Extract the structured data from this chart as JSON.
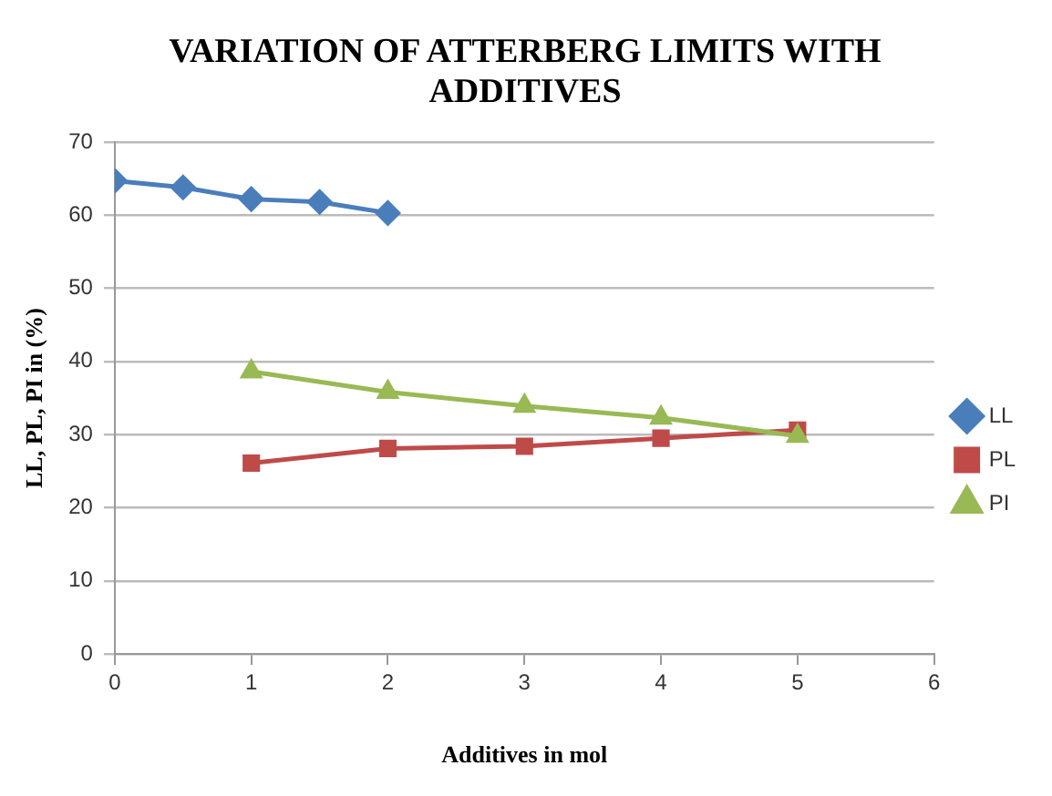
{
  "chart_data": {
    "type": "line",
    "title": "VARIATION OF ATTERBERG LIMITS WITH ADDITIVES",
    "xlabel": "Additives in mol",
    "ylabel": "LL, PL, PI in (%)",
    "xlim": [
      0,
      6
    ],
    "xticks": [
      0,
      1,
      2,
      3,
      4,
      5,
      6
    ],
    "ylim": [
      0,
      70
    ],
    "yticks": [
      0,
      10,
      20,
      30,
      40,
      50,
      60,
      70
    ],
    "grid": "y",
    "legend": "right",
    "line_style": "solid",
    "series": [
      {
        "name": "LL",
        "color": "#4a7ebb",
        "marker": "diamond",
        "x": [
          0,
          0.5,
          1,
          1.5,
          2
        ],
        "values": [
          64.7,
          63.8,
          62.2,
          61.8,
          60.3
        ]
      },
      {
        "name": "PL",
        "color": "#be4b48",
        "marker": "square",
        "x": [
          1,
          2,
          3,
          4,
          5
        ],
        "values": [
          26.1,
          28.1,
          28.4,
          29.5,
          30.6
        ]
      },
      {
        "name": "PI",
        "color": "#98b954",
        "marker": "triangle",
        "x": [
          1,
          2,
          3,
          4,
          5
        ],
        "values": [
          38.6,
          35.8,
          33.9,
          32.3,
          29.8
        ]
      }
    ]
  }
}
